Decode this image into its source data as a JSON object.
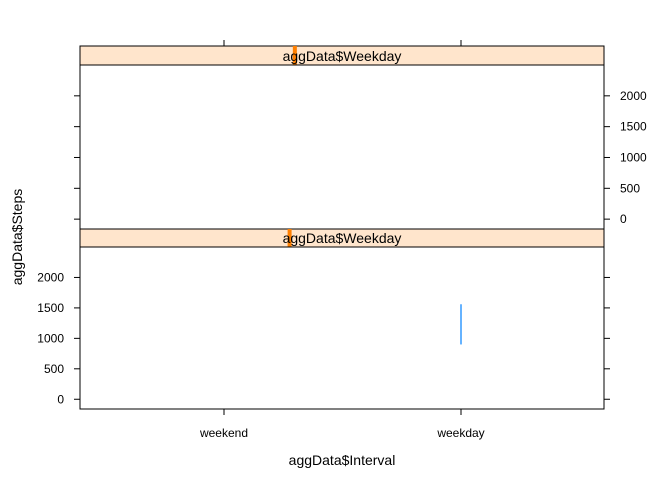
{
  "chart_data": {
    "type": "lattice-xyplot",
    "xlabel": "aggData$Interval",
    "ylabel": "aggData$Steps",
    "categories": [
      "weekend",
      "weekday"
    ],
    "yticks": [
      0,
      500,
      1000,
      1500,
      2000
    ],
    "ylim": [
      -160,
      2500
    ],
    "colors": {
      "strip_bg": "#ffe5cc",
      "strip_marker": "#ff7f00",
      "series": "#0080ff",
      "frame": "#000000"
    },
    "panels": [
      {
        "id": "top",
        "strip_label": "aggData$Weekday",
        "strip_level_fraction": 0.41,
        "y_axis_side": "right",
        "series": []
      },
      {
        "id": "bottom",
        "strip_label": "aggData$Weekday",
        "strip_level_fraction": 0.4,
        "y_axis_side": "left",
        "series": [
          {
            "x": "weekday",
            "y_from": 900,
            "y_to": 1560
          }
        ]
      }
    ]
  }
}
